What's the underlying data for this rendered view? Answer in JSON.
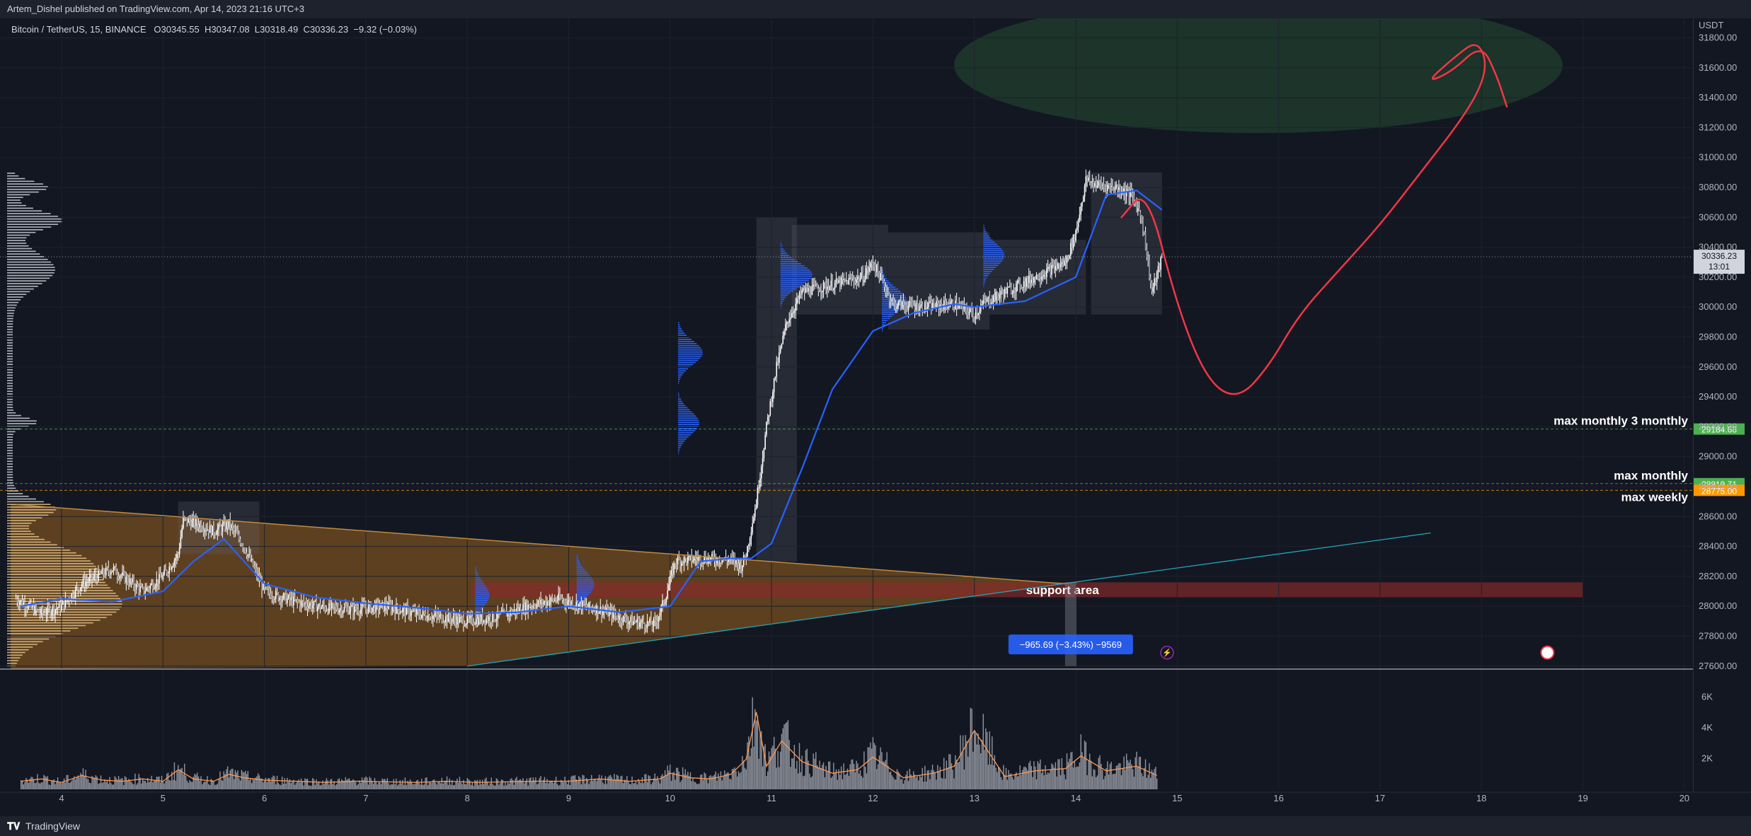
{
  "header": {
    "publisher": "Artem_Dishel published on TradingView.com, Apr 14, 2023 21:16 UTC+3"
  },
  "symbol": {
    "name": "Bitcoin / TetherUS, 15, BINANCE",
    "open": "O30345.55",
    "high": "H30347.08",
    "low": "L30318.49",
    "close": "C30336.23",
    "change": "−9.32 (−0.03%)"
  },
  "footer": {
    "brand": "TradingView"
  },
  "colors": {
    "background": "#131722",
    "candle": "#ffffff",
    "vwap": "#2962ff",
    "projection": "#f23645",
    "triangle": "#8a5a1f",
    "support_area": "#8b2a2a",
    "target_ellipse": "#1f3a2c",
    "level_green": "#4caf50",
    "level_orange": "#ff9800"
  },
  "chart_data": {
    "type": "candlestick",
    "symbol": "Bitcoin / TetherUS",
    "exchange": "BINANCE",
    "interval": "15",
    "quote_currency": "USDT",
    "x_axis": {
      "ticks": [
        "4",
        "5",
        "6",
        "7",
        "8",
        "9",
        "10",
        "11",
        "12",
        "13",
        "14",
        "15",
        "16",
        "17",
        "18",
        "19",
        "20"
      ]
    },
    "y_axis": {
      "ticks": [
        "27600.00",
        "27800.00",
        "28000.00",
        "28200.00",
        "28400.00",
        "28600.00",
        "28800.00",
        "29000.00",
        "29200.00",
        "29400.00",
        "29600.00",
        "29800.00",
        "30000.00",
        "30200.00",
        "30400.00",
        "30600.00",
        "30800.00",
        "31000.00",
        "31200.00",
        "31400.00",
        "31600.00",
        "31800.00"
      ],
      "range": [
        27580,
        31930
      ]
    },
    "price_path": {
      "x": [
        3.55,
        3.8,
        4.0,
        4.2,
        4.5,
        4.8,
        5.0,
        5.15,
        5.2,
        5.35,
        5.5,
        5.65,
        5.8,
        6.0,
        6.3,
        6.6,
        6.9,
        7.2,
        7.5,
        7.8,
        8.0,
        8.3,
        8.6,
        8.9,
        9.15,
        9.3,
        9.6,
        9.85,
        9.95,
        10.05,
        10.3,
        10.6,
        10.7,
        10.75,
        10.85,
        10.95,
        11.05,
        11.15,
        11.3,
        11.6,
        11.9,
        12.0,
        12.2,
        12.5,
        12.8,
        13.0,
        13.1,
        13.3,
        13.6,
        13.9,
        14.0,
        14.1,
        14.2,
        14.4,
        14.55,
        14.65,
        14.75,
        14.85
      ],
      "y": [
        28050,
        27950,
        28000,
        28150,
        28250,
        28100,
        28200,
        28350,
        28580,
        28550,
        28500,
        28550,
        28400,
        28100,
        28030,
        27990,
        27980,
        28000,
        27950,
        27920,
        27900,
        27930,
        28000,
        28050,
        28000,
        27980,
        27900,
        27880,
        28050,
        28300,
        28320,
        28310,
        28270,
        28350,
        28700,
        29200,
        29600,
        29900,
        30100,
        30150,
        30200,
        30300,
        30020,
        30000,
        30020,
        29950,
        30030,
        30100,
        30200,
        30300,
        30500,
        30850,
        30820,
        30800,
        30750,
        30600,
        30100,
        30330
      ]
    },
    "vwap_path": {
      "x": [
        3.6,
        4.0,
        4.5,
        5.0,
        5.3,
        5.6,
        6.0,
        6.5,
        7.0,
        7.5,
        8.0,
        8.5,
        9.0,
        9.5,
        10.0,
        10.3,
        10.6,
        10.8,
        11.0,
        11.3,
        11.6,
        12.0,
        12.4,
        12.8,
        13.0,
        13.5,
        14.0,
        14.3,
        14.6,
        14.85
      ],
      "y": [
        28000,
        28050,
        28030,
        28100,
        28300,
        28450,
        28150,
        28060,
        28020,
        27990,
        27950,
        27960,
        28000,
        27960,
        28000,
        28300,
        28320,
        28320,
        28420,
        28920,
        29450,
        29840,
        29960,
        30020,
        30000,
        30040,
        30200,
        30750,
        30780,
        30650
      ]
    },
    "projection_path": {
      "x": [
        14.45,
        14.7,
        15.0,
        15.3,
        15.6,
        15.9,
        16.2,
        16.6,
        17.0,
        17.4,
        17.8,
        18.0,
        18.05,
        17.95,
        17.75,
        17.45,
        17.7,
        18.0,
        18.15,
        18.25
      ],
      "y": [
        30600,
        30800,
        30000,
        29500,
        29380,
        29600,
        29950,
        30250,
        30550,
        30900,
        31250,
        31480,
        31650,
        31780,
        31680,
        31500,
        31570,
        31760,
        31550,
        31340
      ]
    },
    "price_lines": [
      {
        "label": "max monthly 3 monthly",
        "value": 29184.68,
        "badge": "29184.68"
      },
      {
        "label": "max monthly",
        "value": 28819.71,
        "badge": "28819.71"
      },
      {
        "label": "max weekly",
        "value": 28775.0,
        "badge": "28775.00"
      }
    ],
    "last_price": {
      "value": 30336.23,
      "badge": "30336.23",
      "countdown": "13:01"
    },
    "zones": [
      {
        "label": "support area",
        "from_x": 8.05,
        "to_x": 19.0,
        "low": 28060,
        "high": 28160
      },
      {
        "label": "",
        "from_x": 12.8,
        "to_x": 18.8,
        "low": 31400,
        "high": 31930
      }
    ],
    "measure": {
      "label": "−965.69 (−3.43%) −9569"
    },
    "trendlines": [
      {
        "from": [
          3.55,
          28680
        ],
        "to": [
          13.9,
          28150
        ]
      },
      {
        "from": [
          8.0,
          27600
        ],
        "to": [
          17.5,
          28490
        ]
      }
    ],
    "volume": {
      "ticks": [
        "2K",
        "4K",
        "6K"
      ],
      "range": [
        0,
        6900
      ],
      "x": [
        3.6,
        3.8,
        4.0,
        4.2,
        4.4,
        4.6,
        4.8,
        5.0,
        5.15,
        5.3,
        5.5,
        5.65,
        5.8,
        6.0,
        6.3,
        6.6,
        6.9,
        7.2,
        7.5,
        7.8,
        8.1,
        8.4,
        8.7,
        9.0,
        9.3,
        9.6,
        9.9,
        10.0,
        10.2,
        10.4,
        10.6,
        10.75,
        10.85,
        10.95,
        11.1,
        11.3,
        11.6,
        11.85,
        12.0,
        12.3,
        12.6,
        12.8,
        13.0,
        13.3,
        13.6,
        13.9,
        14.05,
        14.3,
        14.6,
        14.8
      ],
      "values": [
        700,
        900,
        600,
        1200,
        800,
        700,
        900,
        700,
        1700,
        900,
        700,
        1300,
        1000,
        800,
        700,
        600,
        700,
        650,
        600,
        700,
        600,
        650,
        700,
        700,
        900,
        700,
        900,
        1400,
        1000,
        900,
        1300,
        2600,
        6700,
        2000,
        4200,
        2400,
        1400,
        1700,
        2800,
        1000,
        1400,
        2000,
        5100,
        1100,
        1600,
        1800,
        2900,
        1600,
        2000,
        1200
      ]
    }
  }
}
